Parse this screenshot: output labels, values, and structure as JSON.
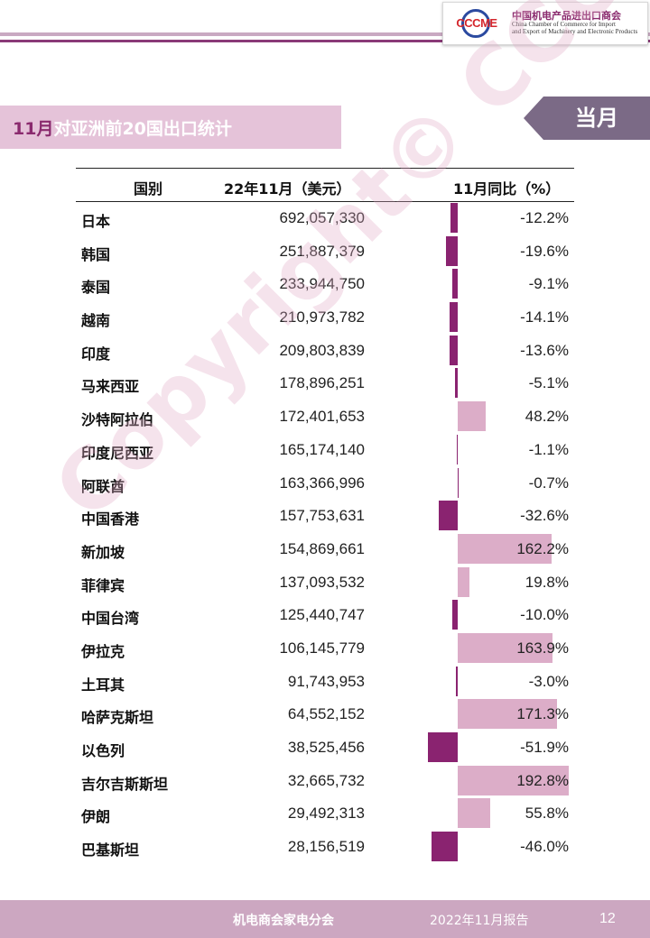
{
  "header": {
    "logo_mark": "CCCME",
    "org_cn": "中国机电产品进出口商会",
    "org_en_1": "China Chamber of Commerce for Import",
    "org_en_2": "and Export of Machinery and Electronic Products"
  },
  "title": {
    "num": "11月",
    "rest": "对亚洲前20国出口统计"
  },
  "badge": "当月",
  "watermark": "Copyright© CCCME",
  "table": {
    "headers": [
      "国别",
      "22年11月（美元）",
      "11月同比（%）"
    ],
    "rows": [
      {
        "name": "日本",
        "value": "692,057,330",
        "pct_label": "-12.2%",
        "pct": -12.2
      },
      {
        "name": "韩国",
        "value": "251,887,379",
        "pct_label": "-19.6%",
        "pct": -19.6
      },
      {
        "name": "泰国",
        "value": "233,944,750",
        "pct_label": "-9.1%",
        "pct": -9.1
      },
      {
        "name": "越南",
        "value": "210,973,782",
        "pct_label": "-14.1%",
        "pct": -14.1
      },
      {
        "name": "印度",
        "value": "209,803,839",
        "pct_label": "-13.6%",
        "pct": -13.6
      },
      {
        "name": "马来西亚",
        "value": "178,896,251",
        "pct_label": "-5.1%",
        "pct": -5.1
      },
      {
        "name": "沙特阿拉伯",
        "value": "172,401,653",
        "pct_label": "48.2%",
        "pct": 48.2
      },
      {
        "name": "印度尼西亚",
        "value": "165,174,140",
        "pct_label": "-1.1%",
        "pct": -1.1
      },
      {
        "name": "阿联酋",
        "value": "163,366,996",
        "pct_label": "-0.7%",
        "pct": -0.7
      },
      {
        "name": "中国香港",
        "value": "157,753,631",
        "pct_label": "-32.6%",
        "pct": -32.6
      },
      {
        "name": "新加坡",
        "value": "154,869,661",
        "pct_label": "162.2%",
        "pct": 162.2
      },
      {
        "name": "菲律宾",
        "value": "137,093,532",
        "pct_label": "19.8%",
        "pct": 19.8
      },
      {
        "name": "中国台湾",
        "value": "125,440,747",
        "pct_label": "-10.0%",
        "pct": -10.0
      },
      {
        "name": "伊拉克",
        "value": "106,145,779",
        "pct_label": "163.9%",
        "pct": 163.9
      },
      {
        "name": "土耳其",
        "value": "91,743,953",
        "pct_label": "-3.0%",
        "pct": -3.0
      },
      {
        "name": "哈萨克斯坦",
        "value": "64,552,152",
        "pct_label": "171.3%",
        "pct": 171.3
      },
      {
        "name": "以色列",
        "value": "38,525,456",
        "pct_label": "-51.9%",
        "pct": -51.9
      },
      {
        "name": "吉尔吉斯斯坦",
        "value": "32,665,732",
        "pct_label": "192.8%",
        "pct": 192.8
      },
      {
        "name": "伊朗",
        "value": "29,492,313",
        "pct_label": "55.8%",
        "pct": 55.8
      },
      {
        "name": "巴基斯坦",
        "value": "28,156,519",
        "pct_label": "-46.0%",
        "pct": -46.0
      }
    ]
  },
  "colors": {
    "negative_bar": "#8a2370",
    "positive_bar": "#dcadc8",
    "accent": "#8a2a6e"
  },
  "footer": {
    "org": "机电商会家电分会",
    "report": "2022年11月报告",
    "page": "12"
  }
}
